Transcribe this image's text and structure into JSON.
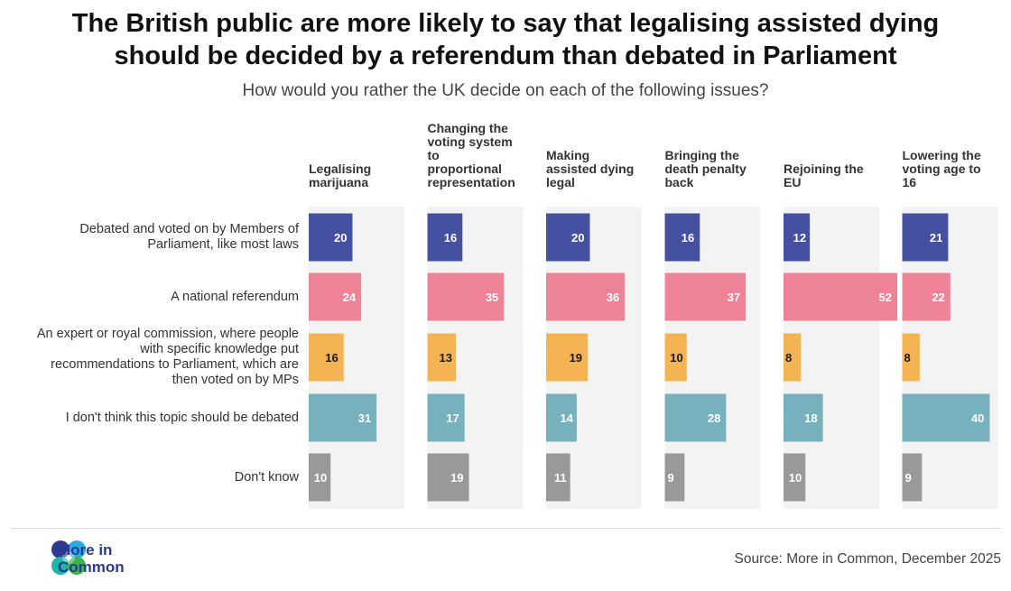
{
  "title_line1": "The British public are more likely to say that legalising assisted dying",
  "title_line2": "should be decided by a referendum than debated in Parliament",
  "subtitle": "How would you rather the UK decide on each of the following issues?",
  "source": "Source: More in Common, December 2025",
  "logo": {
    "line1": "More in",
    "line2": "Common"
  },
  "colors": {
    "parliament": "#4650a0",
    "referendum": "#ee8397",
    "commission": "#f5b453",
    "not_debated": "#77b1bd",
    "dont_know": "#999999",
    "panel": "#f3f3f3"
  },
  "chart_data": {
    "type": "bar",
    "orientation": "horizontal",
    "title": "The British public are more likely to say that legalising assisted dying should be decided by a referendum than debated in Parliament",
    "subtitle": "How would you rather the UK decide on each of the following issues?",
    "xlim": [
      0,
      55
    ],
    "categories": [
      "Debated and voted on by Members of Parliament, like most laws",
      "A national referendum",
      "An expert or royal commission, where people with specific knowledge put recommendations to Parliament, which are then voted on by MPs",
      "I don't think this topic should be debated",
      "Don't know"
    ],
    "category_lines": [
      [
        "Debated and voted on by Members of",
        "Parliament, like most laws"
      ],
      [
        "A national referendum"
      ],
      [
        "An expert or royal commission, where people",
        "with specific knowledge put",
        "recommendations to Parliament, which are",
        "then voted on by MPs"
      ],
      [
        "I don't think this topic should be debated"
      ],
      [
        "Don't know"
      ]
    ],
    "panels": [
      {
        "name": "Legalising marijuana",
        "lines": [
          "Legalising",
          "marijuana"
        ],
        "values": [
          20,
          24,
          16,
          31,
          10
        ]
      },
      {
        "name": "Changing the voting system to proportional representation",
        "lines": [
          "Changing the",
          "voting system",
          "to",
          "proportional",
          "representation"
        ],
        "values": [
          16,
          35,
          13,
          17,
          19
        ]
      },
      {
        "name": "Making assisted dying legal",
        "lines": [
          "Making",
          "assisted dying",
          "legal"
        ],
        "values": [
          20,
          36,
          19,
          14,
          11
        ]
      },
      {
        "name": "Bringing the death penalty back",
        "lines": [
          "Bringing the",
          "death penalty",
          "back"
        ],
        "values": [
          16,
          37,
          10,
          28,
          9
        ]
      },
      {
        "name": "Rejoining the EU",
        "lines": [
          "Rejoining the",
          "EU"
        ],
        "values": [
          12,
          52,
          8,
          18,
          10
        ]
      },
      {
        "name": "Lowering the voting age to 16",
        "lines": [
          "Lowering the",
          "voting age to",
          "16"
        ],
        "values": [
          21,
          22,
          8,
          40,
          9
        ]
      }
    ]
  }
}
